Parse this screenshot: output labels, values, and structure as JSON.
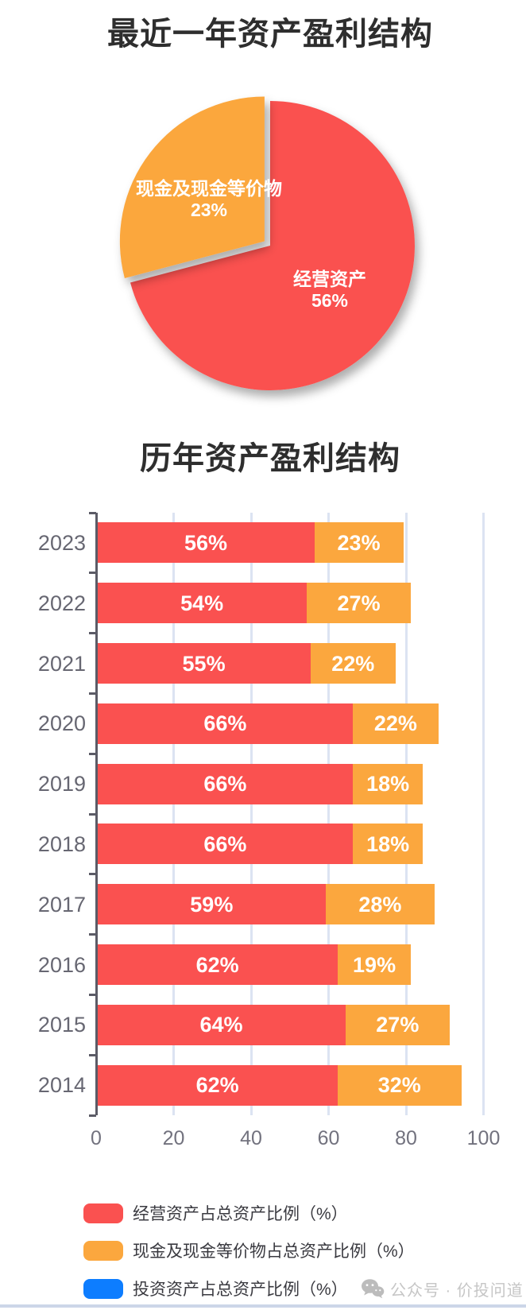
{
  "colors": {
    "red": "#fa5150",
    "orange": "#fba73e",
    "blue": "#0d7dff",
    "grid_line": "#dce3f2",
    "axis": "#5b5b66",
    "year_label": "#676772",
    "tick_label": "#72727e",
    "bar_value_text": "#ffffff",
    "title_text": "#2e2e2e",
    "legend_text": "#3a3a40",
    "watermark_text": "#c6c6c6",
    "watermark_icon": "#bcbcbc",
    "divider": "#ccd6e8"
  },
  "chart_data": [
    {
      "type": "pie",
      "title": "最近一年资产盈利结构",
      "start_angle": "top",
      "direction": "clockwise",
      "slices": [
        {
          "label": "经营资产",
          "value": 56,
          "pct_label": "56%",
          "color_key": "red",
          "exploded": false
        },
        {
          "label": "现金及现金等价物",
          "value": 23,
          "pct_label": "23%",
          "color_key": "orange",
          "exploded": true
        }
      ]
    },
    {
      "type": "bar",
      "orientation": "horizontal",
      "stacked": true,
      "title": "历年资产盈利结构",
      "categories": [
        "2023",
        "2022",
        "2021",
        "2020",
        "2019",
        "2018",
        "2017",
        "2016",
        "2015",
        "2014"
      ],
      "series": [
        {
          "name": "经营资产占总资产比例（%）",
          "color_key": "red",
          "values": [
            56,
            54,
            55,
            66,
            66,
            66,
            59,
            62,
            64,
            62
          ]
        },
        {
          "name": "现金及现金等价物占总资产比例（%）",
          "color_key": "orange",
          "values": [
            23,
            27,
            22,
            22,
            18,
            18,
            28,
            19,
            27,
            32
          ]
        },
        {
          "name": "投资资产占总资产比例（%）",
          "color_key": "blue",
          "values": [
            0,
            0,
            0,
            0,
            0,
            0,
            0,
            0,
            0,
            0
          ]
        }
      ],
      "xlim": [
        0,
        100
      ],
      "x_ticks": [
        0,
        20,
        40,
        60,
        80,
        100
      ],
      "grid": true,
      "legend_position": "bottom",
      "value_suffix": "%"
    }
  ],
  "watermark": {
    "icon": "wechat-icon",
    "text": "公众号 · 价投问道"
  }
}
